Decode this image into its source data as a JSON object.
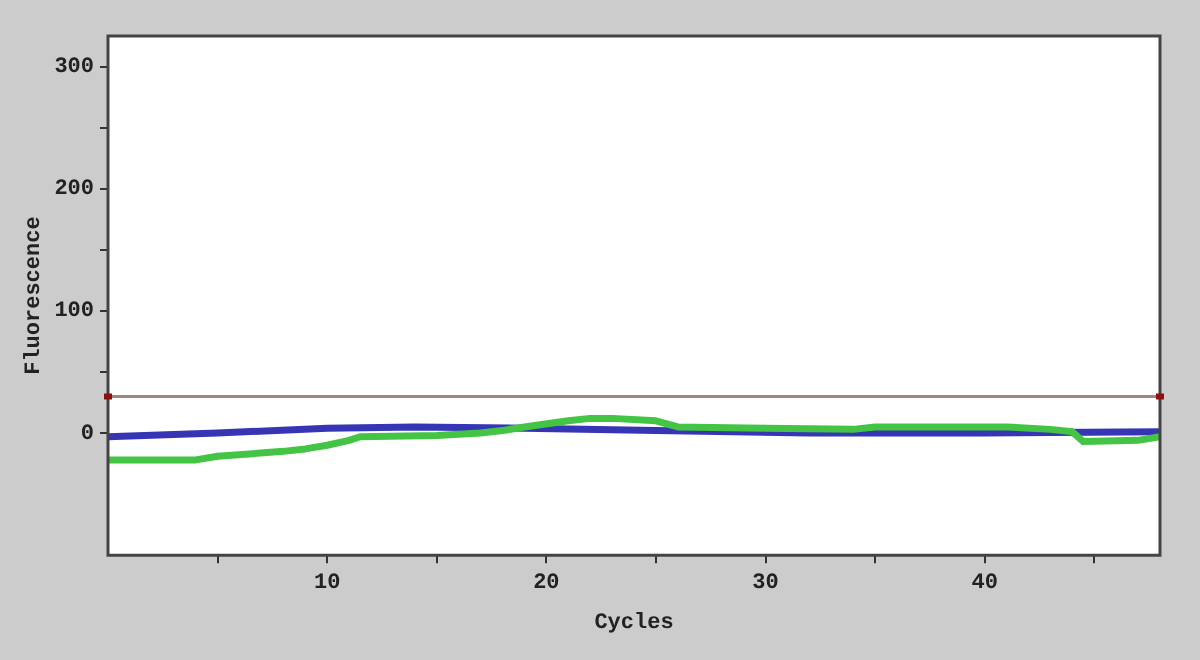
{
  "chart_data": {
    "type": "line",
    "xlabel": "Cycles",
    "ylabel": "Fluorescence",
    "xlim": [
      0,
      48
    ],
    "ylim": [
      -100,
      325
    ],
    "xticks": [
      {
        "value": 5,
        "label": null
      },
      10,
      {
        "value": 15,
        "label": null
      },
      20,
      {
        "value": 25,
        "label": null
      },
      30,
      {
        "value": 35,
        "label": null
      },
      40,
      {
        "value": 45,
        "label": null
      }
    ],
    "yticks": [
      0,
      {
        "value": 50,
        "label": null
      },
      100,
      {
        "value": 150,
        "label": null
      },
      200,
      {
        "value": 250,
        "label": null
      },
      300
    ],
    "legend": false,
    "marker": "none",
    "line_style": "solid",
    "ref_lines": [
      {
        "axis": "y",
        "value": 30,
        "color": "#a08484"
      }
    ],
    "series": [
      {
        "color": "#44c444",
        "x": [
          0,
          4,
          5,
          8,
          9,
          10,
          11,
          11.5,
          15,
          17,
          18,
          19,
          21,
          22,
          23,
          25,
          26,
          30,
          34,
          35,
          41,
          43,
          44,
          44.5,
          47,
          48
        ],
        "values": [
          -22,
          -22,
          -19,
          -15,
          -13,
          -10,
          -6,
          -3,
          -2,
          0,
          2,
          5,
          10,
          12,
          12,
          10,
          5,
          4,
          3,
          5,
          5,
          3,
          1,
          -7,
          -6,
          -3
        ]
      },
      {
        "color": "#3535b5",
        "x": [
          0,
          5,
          10,
          14,
          19,
          25,
          32,
          40,
          48
        ],
        "values": [
          -3,
          0,
          4,
          5,
          4,
          2,
          0,
          0,
          1
        ]
      }
    ]
  }
}
